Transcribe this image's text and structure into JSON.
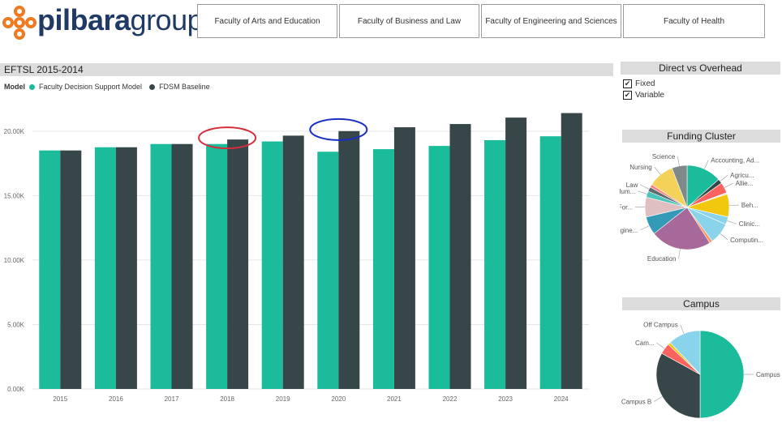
{
  "brand": {
    "name_bold": "pilbara",
    "name_light": "group",
    "color": "#1f3a64",
    "accent": "#f07a22"
  },
  "tabs": [
    {
      "label": "Faculty of Arts and Education"
    },
    {
      "label": "Faculty of Business and Law"
    },
    {
      "label": "Faculty of Engineering and Sciences"
    },
    {
      "label": "Faculty of Health"
    }
  ],
  "main_chart": {
    "title": "EFTSL 2015-2014",
    "legend_title": "Model",
    "series_names": [
      "Faculty Decision Support Model",
      "FDSM Baseline"
    ],
    "colors": [
      "#1abc9c",
      "#374649"
    ]
  },
  "chart_data": [
    {
      "type": "bar",
      "title": "EFTSL 2015-2014",
      "categories": [
        "2015",
        "2016",
        "2017",
        "2018",
        "2019",
        "2020",
        "2021",
        "2022",
        "2023",
        "2024"
      ],
      "series": [
        {
          "name": "Faculty Decision Support Model",
          "values": [
            18500,
            18750,
            19000,
            19000,
            19200,
            18400,
            18600,
            18850,
            19300,
            19600
          ]
        },
        {
          "name": "FDSM Baseline",
          "values": [
            18500,
            18750,
            19000,
            19350,
            19650,
            20000,
            20300,
            20550,
            21050,
            21400
          ]
        }
      ],
      "yticks": [
        "0.00K",
        "5.00K",
        "10.00K",
        "15.00K",
        "20.00K"
      ],
      "ylim": [
        0,
        22000
      ],
      "grid": true,
      "legend_position": "top-left",
      "annotations": [
        {
          "shape": "ellipse",
          "category": "2018",
          "color": "#d62d3c"
        },
        {
          "shape": "ellipse",
          "category": "2020",
          "color": "#1a2fc2"
        }
      ]
    },
    {
      "type": "pie",
      "title": "Funding Cluster",
      "labels": [
        "Accounting, Ad...",
        "Agricu...",
        "Allie...",
        "",
        "Beh...",
        "Clinic...",
        "Computin...",
        "",
        "Education",
        "Engine...",
        "For...",
        "Hum...",
        "Law",
        "",
        "Nursing",
        "Science"
      ],
      "values": [
        11.5,
        1.5,
        3.5,
        0.5,
        7.5,
        2.5,
        7.0,
        1.0,
        20.0,
        6.0,
        6.5,
        2.0,
        1.5,
        1.0,
        8.5,
        5.0
      ],
      "colors": [
        "#1abc9c",
        "#374649",
        "#fd625e",
        "#e8e8e8",
        "#f2c80f",
        "#8ad4eb",
        "#8ad4eb",
        "#fe9666",
        "#a66999",
        "#3599b8",
        "#dfbfbf",
        "#4ac5bb",
        "#5f6b6d",
        "#fb8281",
        "#f4d25a",
        "#7f898a"
      ]
    },
    {
      "type": "pie",
      "title": "Campus",
      "labels": [
        "Campus ...",
        "Campus B",
        "Cam...",
        "",
        "Off Campus"
      ],
      "values": [
        50,
        33,
        4,
        1,
        12
      ],
      "colors": [
        "#1abc9c",
        "#374649",
        "#fd625e",
        "#f2c80f",
        "#8ad4eb"
      ]
    }
  ],
  "direct_overhead": {
    "title": "Direct vs Overhead",
    "options": [
      {
        "label": "Fixed",
        "checked": "✔"
      },
      {
        "label": "Variable",
        "checked": "✔"
      }
    ]
  },
  "funding_cluster": {
    "title": "Funding Cluster"
  },
  "campus": {
    "title": "Campus"
  }
}
